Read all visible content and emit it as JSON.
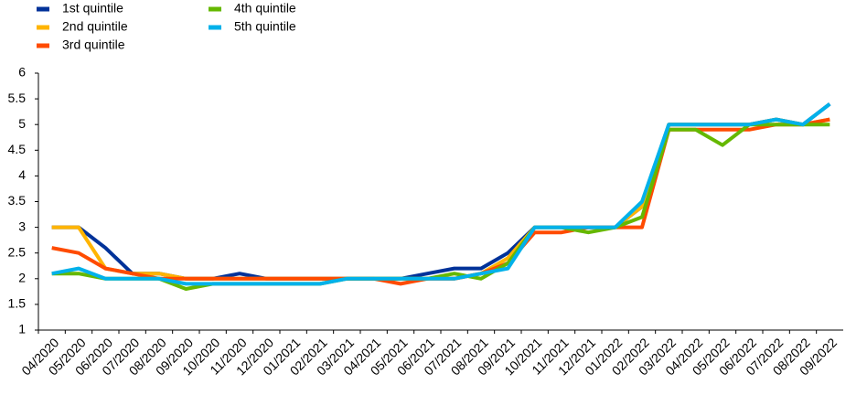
{
  "chart_data": {
    "type": "line",
    "x": [
      "04/2020",
      "05/2020",
      "06/2020",
      "07/2020",
      "08/2020",
      "09/2020",
      "10/2020",
      "11/2020",
      "12/2020",
      "01/2021",
      "02/2021",
      "03/2021",
      "04/2021",
      "05/2021",
      "06/2021",
      "07/2021",
      "08/2021",
      "09/2021",
      "10/2021",
      "11/2021",
      "12/2021",
      "01/2022",
      "02/2022",
      "03/2022",
      "04/2022",
      "05/2022",
      "06/2022",
      "07/2022",
      "08/2022",
      "09/2022"
    ],
    "series": [
      {
        "name": "1st quintile",
        "color": "#003299",
        "values": [
          3,
          3,
          2.6,
          2.1,
          2.1,
          2,
          2,
          2.1,
          2,
          2,
          2,
          2,
          2,
          2,
          2.1,
          2.2,
          2.2,
          2.5,
          3,
          3,
          3,
          3,
          3.4,
          5,
          5,
          5,
          5,
          5.1,
          5,
          5.4
        ]
      },
      {
        "name": "2nd quintile",
        "color": "#ffb400",
        "values": [
          3,
          3,
          2.2,
          2.1,
          2.1,
          2,
          2,
          2,
          2,
          2,
          2,
          2,
          2,
          2,
          2,
          2,
          2.1,
          2.4,
          3,
          3,
          3,
          3,
          3.4,
          5,
          5,
          5,
          5,
          5.1,
          5,
          5.1
        ]
      },
      {
        "name": "3rd quintile",
        "color": "#ff4b00",
        "values": [
          2.6,
          2.5,
          2.2,
          2.1,
          2,
          2,
          2,
          2,
          2,
          2,
          2,
          2,
          2,
          1.9,
          2,
          2,
          2.1,
          2.3,
          2.9,
          2.9,
          3,
          3,
          3,
          4.9,
          4.9,
          4.9,
          4.9,
          5,
          5,
          5.1
        ]
      },
      {
        "name": "4th quintile",
        "color": "#65b800",
        "values": [
          2.1,
          2.1,
          2,
          2,
          2,
          1.8,
          1.9,
          1.9,
          1.9,
          1.9,
          1.9,
          2,
          2,
          2,
          2,
          2.1,
          2,
          2.3,
          3,
          3,
          2.9,
          3,
          3.2,
          4.9,
          4.9,
          4.6,
          5,
          5,
          5,
          5
        ]
      },
      {
        "name": "5th quintile",
        "color": "#00b1ea",
        "values": [
          2.1,
          2.2,
          2,
          2,
          2,
          1.9,
          1.9,
          1.9,
          1.9,
          1.9,
          1.9,
          2,
          2,
          2,
          2,
          2,
          2.1,
          2.2,
          3,
          3,
          3,
          3,
          3.5,
          5,
          5,
          5,
          5,
          5.1,
          5,
          5.4
        ]
      }
    ],
    "ylim": [
      1,
      6
    ],
    "yticks": [
      1,
      1.5,
      2,
      2.5,
      3,
      3.5,
      4,
      4.5,
      5,
      5.5,
      6
    ],
    "grid": false,
    "legend": "top-left"
  }
}
